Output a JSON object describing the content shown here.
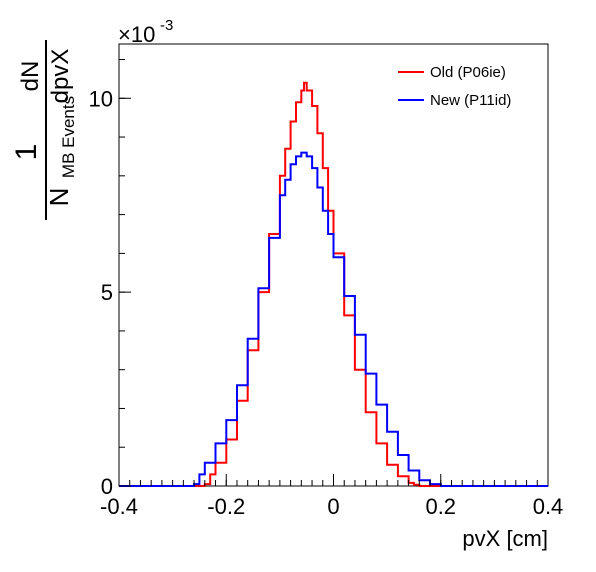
{
  "chart_data": {
    "type": "line",
    "title": "",
    "xlabel": "pvX [cm]",
    "ylabel": {
      "numerator_left": "1",
      "denominator_left_main": "N",
      "denominator_left_sub": "MB Events",
      "numerator_right": "dN",
      "denominator_right": "dpvX"
    },
    "y_multiplier": {
      "base": "×10",
      "exponent": "-3"
    },
    "xlim": [
      -0.4,
      0.4
    ],
    "ylim": [
      0,
      11.4
    ],
    "x_ticks": [
      -0.4,
      -0.2,
      0,
      0.2,
      0.4
    ],
    "x_tick_labels": [
      "-0.4",
      "-0.2",
      "0",
      "0.2",
      "0.4"
    ],
    "y_ticks": [
      0,
      5,
      10
    ],
    "y_tick_labels": [
      "0",
      "5",
      "10"
    ],
    "legend_position": "top-right",
    "grid": false,
    "x_scale": "linear",
    "y_scale": "linear",
    "series": [
      {
        "name": "Old (P06ie)",
        "color": "#ff0000",
        "x": [
          -0.4,
          -0.26,
          -0.24,
          -0.23,
          -0.22,
          -0.2,
          -0.18,
          -0.16,
          -0.14,
          -0.12,
          -0.1,
          -0.09,
          -0.08,
          -0.07,
          -0.06,
          -0.055,
          -0.05,
          -0.04,
          -0.03,
          -0.02,
          -0.01,
          0.0,
          0.02,
          0.04,
          0.06,
          0.08,
          0.1,
          0.12,
          0.14,
          0.15,
          0.16,
          0.4
        ],
        "values": [
          0.0,
          0.0,
          0.05,
          0.3,
          0.6,
          1.2,
          2.2,
          3.5,
          5.0,
          6.5,
          8.0,
          8.7,
          9.4,
          9.9,
          10.2,
          10.4,
          10.2,
          9.8,
          9.1,
          8.2,
          7.1,
          6.0,
          4.4,
          3.0,
          1.9,
          1.1,
          0.55,
          0.25,
          0.08,
          0.03,
          0.0,
          0.0
        ]
      },
      {
        "name": "New (P11id)",
        "color": "#0000ff",
        "x": [
          -0.4,
          -0.27,
          -0.26,
          -0.25,
          -0.24,
          -0.22,
          -0.2,
          -0.18,
          -0.16,
          -0.14,
          -0.12,
          -0.1,
          -0.09,
          -0.08,
          -0.07,
          -0.06,
          -0.05,
          -0.04,
          -0.03,
          -0.02,
          -0.01,
          0.0,
          0.02,
          0.04,
          0.06,
          0.08,
          0.1,
          0.12,
          0.14,
          0.16,
          0.18,
          0.2,
          0.4
        ],
        "values": [
          0.0,
          0.0,
          0.05,
          0.3,
          0.6,
          1.1,
          1.7,
          2.6,
          3.8,
          5.1,
          6.4,
          7.5,
          7.9,
          8.3,
          8.5,
          8.6,
          8.5,
          8.2,
          7.7,
          7.1,
          6.5,
          5.9,
          4.9,
          3.9,
          2.9,
          2.1,
          1.4,
          0.8,
          0.4,
          0.15,
          0.05,
          0.0,
          0.0
        ]
      }
    ]
  }
}
